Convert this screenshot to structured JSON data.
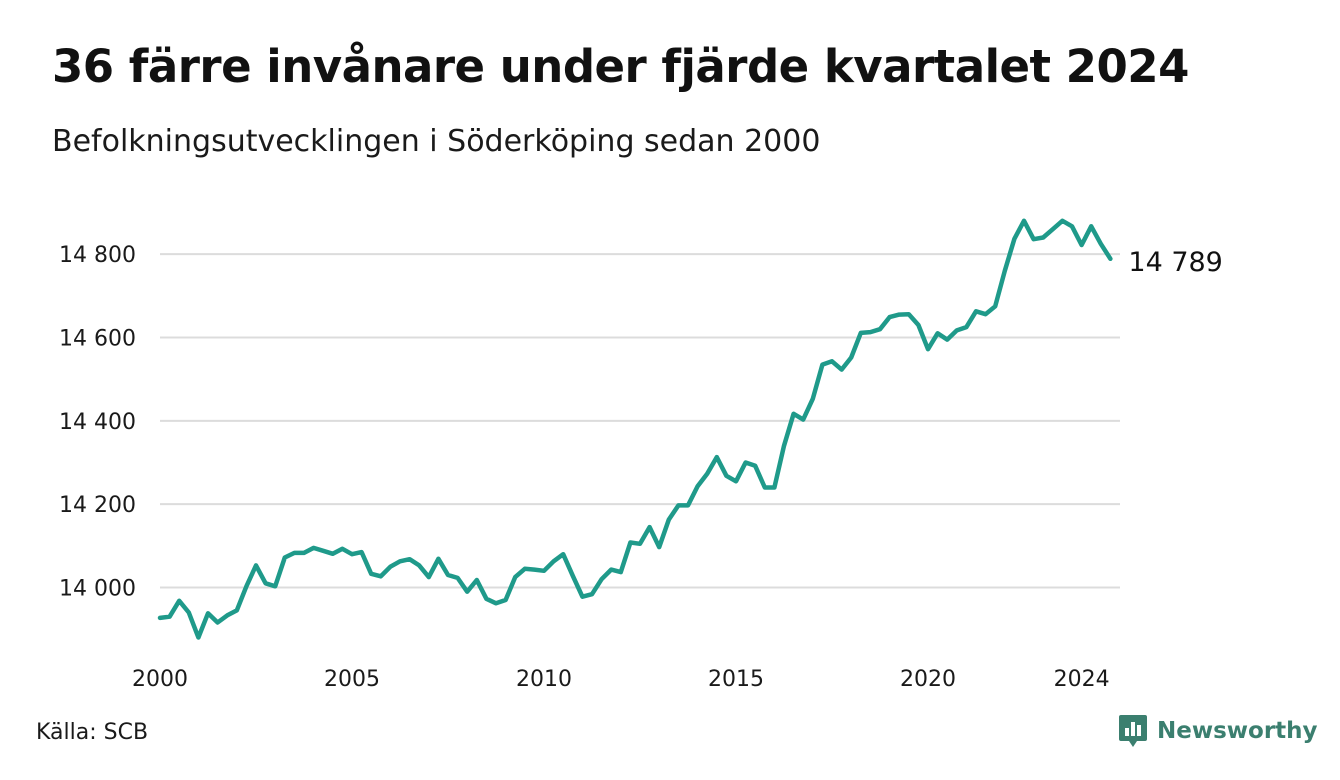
{
  "title": "36 färre invånare under fjärde kvartalet 2024",
  "subtitle": "Befolkningsutvecklingen i Söderköping sedan 2000",
  "source": "Källa: SCB",
  "brand": "Newsworthy",
  "colors": {
    "line": "#1f9a8a",
    "grid": "#dcdcdc",
    "brand": "#3b7f6f"
  },
  "chart_data": {
    "type": "line",
    "title": "",
    "xlabel": "",
    "ylabel": "",
    "x_ticks": [
      "2000",
      "2005",
      "2010",
      "2015",
      "2020",
      "2024"
    ],
    "y_ticks": [
      "14 000",
      "14 200",
      "14 400",
      "14 600",
      "14 800"
    ],
    "ylim": [
      13850,
      14930
    ],
    "xlim": [
      2000.0,
      2025.0
    ],
    "grid": true,
    "end_label": "14 789",
    "series": [
      {
        "values": [
          [
            2000.0,
            13927
          ],
          [
            2000.25,
            13930
          ],
          [
            2000.5,
            13968
          ],
          [
            2000.75,
            13940
          ],
          [
            2001.0,
            13880
          ],
          [
            2001.25,
            13938
          ],
          [
            2001.5,
            13916
          ],
          [
            2001.75,
            13933
          ],
          [
            2002.0,
            13945
          ],
          [
            2002.25,
            14003
          ],
          [
            2002.5,
            14053
          ],
          [
            2002.75,
            14010
          ],
          [
            2003.0,
            14003
          ],
          [
            2003.25,
            14072
          ],
          [
            2003.5,
            14083
          ],
          [
            2003.75,
            14083
          ],
          [
            2004.0,
            14095
          ],
          [
            2004.25,
            14088
          ],
          [
            2004.5,
            14081
          ],
          [
            2004.75,
            14093
          ],
          [
            2005.0,
            14080
          ],
          [
            2005.25,
            14085
          ],
          [
            2005.5,
            14033
          ],
          [
            2005.75,
            14027
          ],
          [
            2006.0,
            14050
          ],
          [
            2006.25,
            14063
          ],
          [
            2006.5,
            14068
          ],
          [
            2006.75,
            14053
          ],
          [
            2007.0,
            14025
          ],
          [
            2007.25,
            14069
          ],
          [
            2007.5,
            14030
          ],
          [
            2007.75,
            14023
          ],
          [
            2008.0,
            13990
          ],
          [
            2008.25,
            14018
          ],
          [
            2008.5,
            13973
          ],
          [
            2008.75,
            13962
          ],
          [
            2009.0,
            13970
          ],
          [
            2009.25,
            14025
          ],
          [
            2009.5,
            14045
          ],
          [
            2009.75,
            14043
          ],
          [
            2010.0,
            14040
          ],
          [
            2010.25,
            14063
          ],
          [
            2010.5,
            14080
          ],
          [
            2010.75,
            14028
          ],
          [
            2011.0,
            13978
          ],
          [
            2011.25,
            13984
          ],
          [
            2011.5,
            14020
          ],
          [
            2011.75,
            14043
          ],
          [
            2012.0,
            14037
          ],
          [
            2012.25,
            14108
          ],
          [
            2012.5,
            14105
          ],
          [
            2012.75,
            14145
          ],
          [
            2013.0,
            14097
          ],
          [
            2013.25,
            14163
          ],
          [
            2013.5,
            14197
          ],
          [
            2013.75,
            14197
          ],
          [
            2014.0,
            14243
          ],
          [
            2014.25,
            14273
          ],
          [
            2014.5,
            14313
          ],
          [
            2014.75,
            14268
          ],
          [
            2015.0,
            14255
          ],
          [
            2015.25,
            14300
          ],
          [
            2015.5,
            14292
          ],
          [
            2015.75,
            14240
          ],
          [
            2016.0,
            14240
          ],
          [
            2016.25,
            14340
          ],
          [
            2016.5,
            14417
          ],
          [
            2016.75,
            14403
          ],
          [
            2017.0,
            14453
          ],
          [
            2017.25,
            14535
          ],
          [
            2017.5,
            14543
          ],
          [
            2017.75,
            14523
          ],
          [
            2018.0,
            14552
          ],
          [
            2018.25,
            14611
          ],
          [
            2018.5,
            14613
          ],
          [
            2018.75,
            14620
          ],
          [
            2019.0,
            14649
          ],
          [
            2019.25,
            14655
          ],
          [
            2019.5,
            14656
          ],
          [
            2019.75,
            14630
          ],
          [
            2020.0,
            14572
          ],
          [
            2020.25,
            14610
          ],
          [
            2020.5,
            14595
          ],
          [
            2020.75,
            14617
          ],
          [
            2021.0,
            14625
          ],
          [
            2021.25,
            14663
          ],
          [
            2021.5,
            14656
          ],
          [
            2021.75,
            14675
          ],
          [
            2022.0,
            14760
          ],
          [
            2022.25,
            14837
          ],
          [
            2022.5,
            14880
          ],
          [
            2022.75,
            14836
          ],
          [
            2023.0,
            14840
          ],
          [
            2023.25,
            14860
          ],
          [
            2023.5,
            14880
          ],
          [
            2023.75,
            14867
          ],
          [
            2024.0,
            14822
          ],
          [
            2024.25,
            14867
          ],
          [
            2024.5,
            14825
          ],
          [
            2024.75,
            14789
          ]
        ]
      }
    ]
  }
}
